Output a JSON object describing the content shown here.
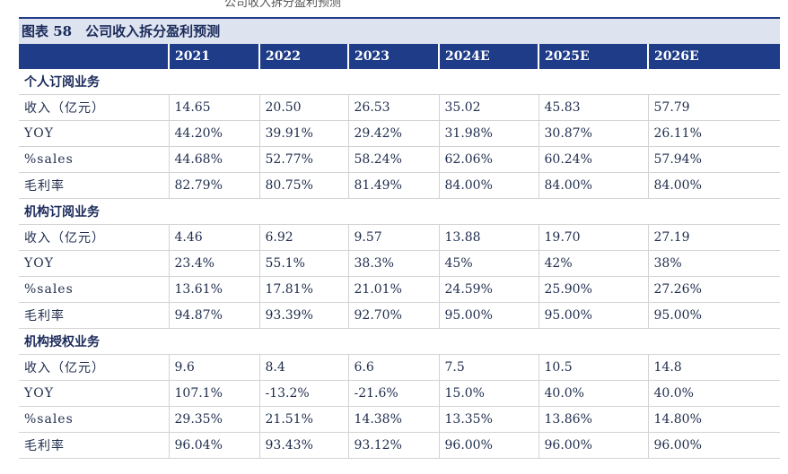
{
  "top_fragment": "公司收入拆分盈利预测",
  "figure_title": "图表 58　公司收入拆分盈利预测",
  "headers": [
    "",
    "2021",
    "2022",
    "2023",
    "2024E",
    "2025E",
    "2026E"
  ],
  "sections": [
    {
      "title": "个人订阅业务",
      "rows": [
        {
          "label": "收入（亿元）",
          "values": [
            "14.65",
            "20.50",
            "26.53",
            "35.02",
            "45.83",
            "57.79"
          ]
        },
        {
          "label": "YOY",
          "values": [
            "44.20%",
            "39.91%",
            "29.42%",
            "31.98%",
            "30.87%",
            "26.11%"
          ]
        },
        {
          "label": "%sales",
          "values": [
            "44.68%",
            "52.77%",
            "58.24%",
            "62.06%",
            "60.24%",
            "57.94%"
          ]
        },
        {
          "label": "毛利率",
          "values": [
            "82.79%",
            "80.75%",
            "81.49%",
            "84.00%",
            "84.00%",
            "84.00%"
          ]
        }
      ]
    },
    {
      "title": "机构订阅业务",
      "rows": [
        {
          "label": "收入（亿元）",
          "values": [
            "4.46",
            "6.92",
            "9.57",
            "13.88",
            "19.70",
            "27.19"
          ]
        },
        {
          "label": "YOY",
          "values": [
            "23.4%",
            "55.1%",
            "38.3%",
            "45%",
            "42%",
            "38%"
          ]
        },
        {
          "label": "%sales",
          "values": [
            "13.61%",
            "17.81%",
            "21.01%",
            "24.59%",
            "25.90%",
            "27.26%"
          ]
        },
        {
          "label": "毛利率",
          "values": [
            "94.87%",
            "93.39%",
            "92.70%",
            "95.00%",
            "95.00%",
            "95.00%"
          ]
        }
      ]
    },
    {
      "title": "机构授权业务",
      "rows": [
        {
          "label": "收入（亿元）",
          "values": [
            "9.6",
            "8.4",
            "6.6",
            "7.5",
            "10.5",
            "14.8"
          ]
        },
        {
          "label": "YOY",
          "values": [
            "107.1%",
            "-13.2%",
            "-21.6%",
            "15.0%",
            "40.0%",
            "40.0%"
          ]
        },
        {
          "label": "%sales",
          "values": [
            "29.35%",
            "21.51%",
            "14.38%",
            "13.35%",
            "13.86%",
            "14.80%"
          ]
        },
        {
          "label": "毛利率",
          "values": [
            "96.04%",
            "93.43%",
            "93.12%",
            "96.00%",
            "96.00%",
            "96.00%"
          ]
        }
      ]
    }
  ]
}
